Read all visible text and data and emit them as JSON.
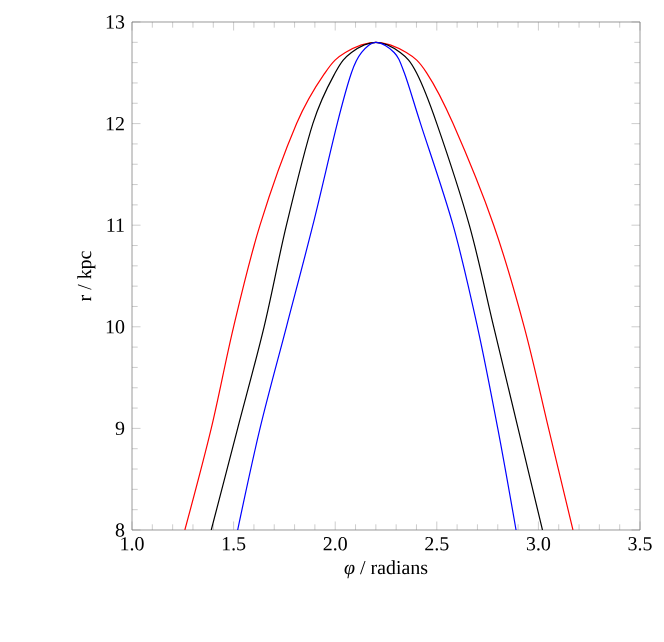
{
  "chart_data": {
    "type": "line",
    "xlabel": "*φ* / radians",
    "ylabel": "r / kpc",
    "xlim": [
      1.0,
      3.5
    ],
    "xticks": [
      {
        "value": 1.0,
        "label": "1.0"
      },
      {
        "value": 1.5,
        "label": "1.5"
      },
      {
        "value": 2.0,
        "label": "2.0"
      },
      {
        "value": 2.5,
        "label": "2.5"
      },
      {
        "value": 3.0,
        "label": "3.0"
      },
      {
        "value": 3.5,
        "label": "3.5"
      }
    ],
    "ylim": [
      8,
      13
    ],
    "yticks": [
      8,
      9,
      10,
      11,
      12,
      13
    ],
    "marker": "none",
    "line_style": "solid",
    "series": [
      {
        "color": "#ff0000",
        "x": [
          1.26,
          1.39,
          1.5,
          1.63,
          1.81,
          1.95,
          2.05,
          2.2,
          2.35,
          2.45,
          2.58,
          2.78,
          2.93,
          3.05,
          3.17
        ],
        "values": [
          8,
          9,
          10,
          11,
          12,
          12.5,
          12.7,
          12.8,
          12.7,
          12.5,
          12,
          11,
          10,
          9,
          8
        ]
      },
      {
        "color": "#000000",
        "x": [
          1.39,
          1.52,
          1.65,
          1.76,
          1.89,
          2.0,
          2.08,
          2.2,
          2.32,
          2.4,
          2.5,
          2.66,
          2.78,
          2.9,
          3.02
        ],
        "values": [
          8,
          9,
          10,
          11,
          12,
          12.5,
          12.7,
          12.8,
          12.7,
          12.5,
          12,
          11,
          10,
          9,
          8
        ]
      },
      {
        "color": "#0000ff",
        "x": [
          1.52,
          1.63,
          1.76,
          1.89,
          2.01,
          2.08,
          2.13,
          2.2,
          2.29,
          2.34,
          2.42,
          2.58,
          2.7,
          2.8,
          2.89
        ],
        "values": [
          8,
          9,
          10,
          11,
          12,
          12.5,
          12.7,
          12.8,
          12.7,
          12.5,
          12,
          11,
          10,
          9,
          8
        ]
      }
    ]
  }
}
